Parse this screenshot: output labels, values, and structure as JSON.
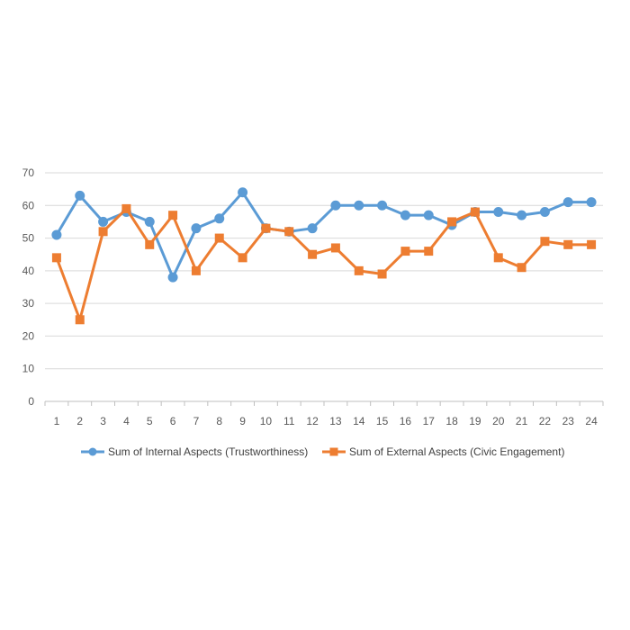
{
  "chart_data": {
    "type": "line",
    "title": "",
    "xlabel": "",
    "ylabel": "",
    "ylim": [
      0,
      70
    ],
    "yticks": [
      0,
      10,
      20,
      30,
      40,
      50,
      60,
      70
    ],
    "grid": "horizontal",
    "legend_position": "bottom",
    "categories": [
      "1",
      "2",
      "3",
      "4",
      "5",
      "6",
      "7",
      "8",
      "9",
      "10",
      "11",
      "12",
      "13",
      "14",
      "15",
      "16",
      "17",
      "18",
      "19",
      "20",
      "21",
      "22",
      "23",
      "24"
    ],
    "series": [
      {
        "name": "Sum of Internal Aspects (Trustworthiness)",
        "color": "#5B9BD5",
        "marker": "circle",
        "values": [
          51,
          63,
          55,
          58,
          55,
          38,
          53,
          56,
          64,
          53,
          52,
          53,
          60,
          60,
          60,
          57,
          57,
          54,
          58,
          58,
          57,
          58,
          61,
          61
        ]
      },
      {
        "name": "Sum of External Aspects (Civic Engagement)",
        "color": "#ED7D31",
        "marker": "square",
        "values": [
          44,
          25,
          52,
          59,
          48,
          57,
          40,
          50,
          44,
          53,
          52,
          45,
          47,
          40,
          39,
          46,
          46,
          55,
          58,
          44,
          41,
          49,
          48,
          48
        ]
      }
    ]
  }
}
